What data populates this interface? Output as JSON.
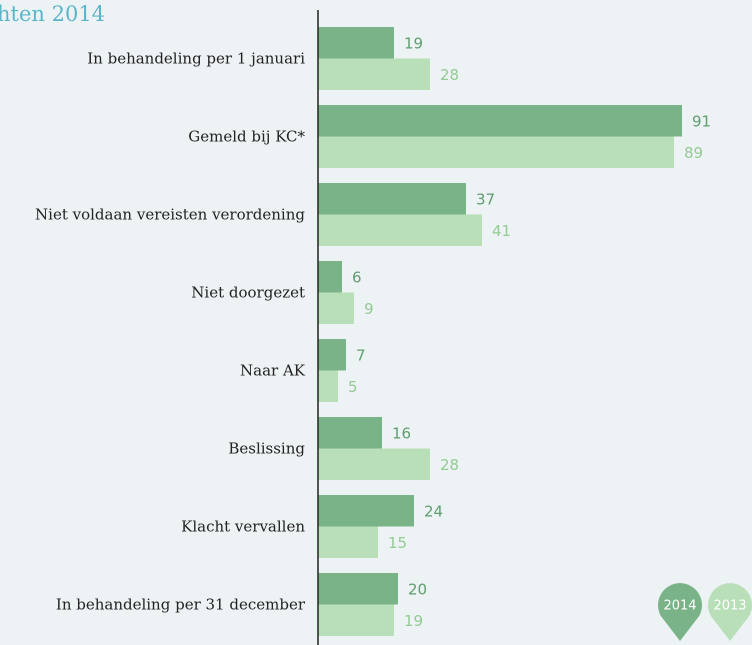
{
  "chart_data": {
    "type": "bar",
    "orientation": "horizontal",
    "title": "hten 2014",
    "categories": [
      "In behandeling per 1 januari",
      "Gemeld bij KC*",
      "Niet voldaan vereisten verordening",
      "Niet doorgezet",
      "Naar AK",
      "Beslissing",
      "Klacht vervallen",
      "In behandeling per 31 december"
    ],
    "series": [
      {
        "name": "2014",
        "color": "#7ab387",
        "label_color": "#5f9e6d",
        "values": [
          19,
          91,
          37,
          6,
          7,
          16,
          24,
          20
        ]
      },
      {
        "name": "2013",
        "color": "#b9dfb9",
        "label_color": "#93cb93",
        "values": [
          28,
          89,
          41,
          9,
          5,
          28,
          15,
          19
        ]
      }
    ],
    "xlim": [
      0,
      100
    ]
  }
}
